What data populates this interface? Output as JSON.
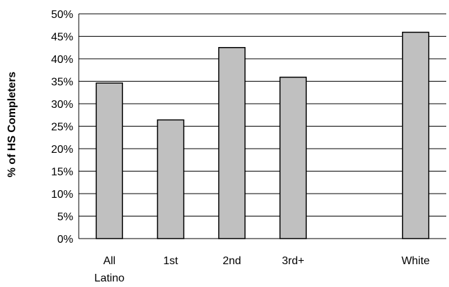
{
  "chart_data": {
    "type": "bar",
    "title": "",
    "xlabel": "",
    "ylabel": "% of HS Completers",
    "ylim": [
      0,
      50
    ],
    "y_ticks": [
      0,
      5,
      10,
      15,
      20,
      25,
      30,
      35,
      40,
      45,
      50
    ],
    "y_tick_suffix": "%",
    "grid": true,
    "legend": "none",
    "bar_color": "#c0c0c0",
    "categories": [
      {
        "label_lines": [
          "All",
          "Latino"
        ],
        "slot": 0,
        "value": 34.6
      },
      {
        "label_lines": [
          "1st"
        ],
        "slot": 1,
        "value": 26.4
      },
      {
        "label_lines": [
          "2nd"
        ],
        "slot": 2,
        "value": 42.5
      },
      {
        "label_lines": [
          "3rd+"
        ],
        "slot": 3,
        "value": 35.9
      },
      {
        "label_lines": [
          "White"
        ],
        "slot": 5,
        "value": 45.9
      }
    ]
  }
}
